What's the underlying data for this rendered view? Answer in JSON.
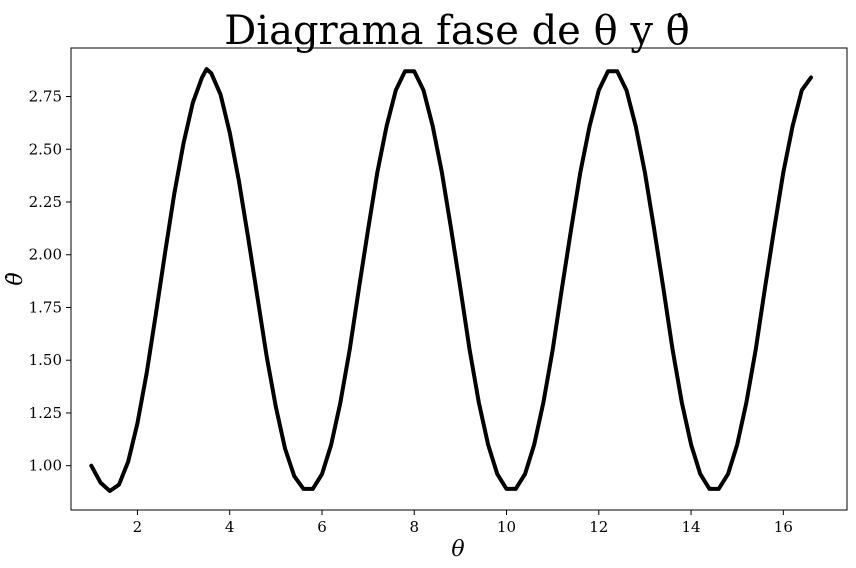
{
  "chart_data": {
    "type": "line",
    "title": "Diagrama fase de θ y θ̇",
    "xlabel": "θ",
    "ylabel": "θ̇",
    "xlim": [
      0.56,
      17.38
    ],
    "ylim": [
      0.79,
      2.98
    ],
    "xticks": [
      2,
      4,
      6,
      8,
      10,
      12,
      14,
      16
    ],
    "xtick_labels": [
      "2",
      "4",
      "6",
      "8",
      "10",
      "12",
      "14",
      "16"
    ],
    "yticks": [
      1.0,
      1.25,
      1.5,
      1.75,
      2.0,
      2.25,
      2.5,
      2.75
    ],
    "ytick_labels": [
      "1.00",
      "1.25",
      "1.50",
      "1.75",
      "2.00",
      "2.25",
      "2.50",
      "2.75"
    ],
    "grid": false,
    "series": [
      {
        "color": "#000000",
        "x": [
          1.0,
          1.2,
          1.4,
          1.6,
          1.8,
          2.0,
          2.2,
          2.4,
          2.6,
          2.8,
          3.0,
          3.2,
          3.4,
          3.5,
          3.6,
          3.8,
          4.0,
          4.2,
          4.4,
          4.6,
          4.8,
          5.0,
          5.2,
          5.4,
          5.6,
          5.8,
          6.0,
          6.2,
          6.4,
          6.6,
          6.8,
          7.0,
          7.2,
          7.4,
          7.6,
          7.8,
          8.0,
          8.2,
          8.4,
          8.6,
          8.8,
          9.0,
          9.2,
          9.4,
          9.6,
          9.8,
          10.0,
          10.2,
          10.4,
          10.6,
          10.8,
          11.0,
          11.2,
          11.4,
          11.6,
          11.8,
          12.0,
          12.2,
          12.4,
          12.6,
          12.8,
          13.0,
          13.2,
          13.4,
          13.6,
          13.8,
          14.0,
          14.2,
          14.4,
          14.6,
          14.8,
          15.0,
          15.2,
          15.4,
          15.6,
          15.8,
          16.0,
          16.2,
          16.4,
          16.6
        ],
        "y": [
          1.0,
          0.92,
          0.88,
          0.91,
          1.02,
          1.2,
          1.44,
          1.72,
          2.01,
          2.29,
          2.53,
          2.72,
          2.84,
          2.88,
          2.86,
          2.76,
          2.58,
          2.35,
          2.08,
          1.8,
          1.52,
          1.28,
          1.08,
          0.95,
          0.89,
          0.89,
          0.96,
          1.1,
          1.3,
          1.55,
          1.84,
          2.12,
          2.39,
          2.61,
          2.78,
          2.87,
          2.87,
          2.78,
          2.61,
          2.39,
          2.12,
          1.84,
          1.55,
          1.3,
          1.1,
          0.96,
          0.89,
          0.89,
          0.96,
          1.1,
          1.3,
          1.55,
          1.84,
          2.12,
          2.39,
          2.61,
          2.78,
          2.87,
          2.87,
          2.78,
          2.61,
          2.39,
          2.12,
          1.84,
          1.55,
          1.3,
          1.1,
          0.96,
          0.89,
          0.89,
          0.96,
          1.1,
          1.3,
          1.55,
          1.84,
          2.12,
          2.39,
          2.61,
          2.78,
          2.84
        ]
      }
    ]
  }
}
